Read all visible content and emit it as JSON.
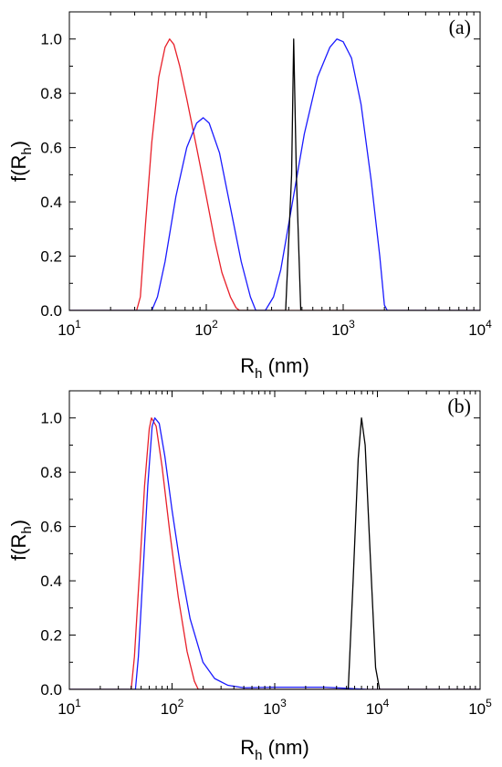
{
  "chart_data": [
    {
      "type": "line",
      "panel_label": "(a)",
      "xlabel": {
        "main": "R",
        "sub": "h",
        "unit": " (nm)"
      },
      "ylabel": {
        "main": "f(R",
        "sub": "h",
        "close": ")"
      },
      "xscale": "log",
      "xlim": [
        10,
        10000
      ],
      "ylim": [
        0,
        1.1
      ],
      "x_ticks": [
        {
          "value": 10,
          "base": "10",
          "exp": "1"
        },
        {
          "value": 100,
          "base": "10",
          "exp": "2"
        },
        {
          "value": 1000,
          "base": "10",
          "exp": "3"
        },
        {
          "value": 10000,
          "base": "10",
          "exp": "4"
        }
      ],
      "y_ticks": [
        "0.0",
        "0.2",
        "0.4",
        "0.6",
        "0.8",
        "1.0"
      ],
      "grid": false,
      "series": [
        {
          "color": "#e8202a",
          "points": [
            [
              10,
              0
            ],
            [
              31,
              0
            ],
            [
              33,
              0.05
            ],
            [
              36,
              0.32
            ],
            [
              40,
              0.62
            ],
            [
              45,
              0.86
            ],
            [
              50,
              0.97
            ],
            [
              54,
              1.0
            ],
            [
              58,
              0.98
            ],
            [
              64,
              0.9
            ],
            [
              72,
              0.78
            ],
            [
              85,
              0.6
            ],
            [
              100,
              0.42
            ],
            [
              115,
              0.26
            ],
            [
              130,
              0.14
            ],
            [
              150,
              0.05
            ],
            [
              165,
              0.01
            ],
            [
              175,
              0
            ],
            [
              10000,
              0
            ]
          ]
        },
        {
          "color": "#1a1aff",
          "points": [
            [
              10,
              0
            ],
            [
              40,
              0
            ],
            [
              44,
              0.05
            ],
            [
              50,
              0.18
            ],
            [
              60,
              0.42
            ],
            [
              72,
              0.6
            ],
            [
              85,
              0.69
            ],
            [
              95,
              0.71
            ],
            [
              105,
              0.69
            ],
            [
              125,
              0.58
            ],
            [
              150,
              0.38
            ],
            [
              180,
              0.18
            ],
            [
              210,
              0.05
            ],
            [
              230,
              0
            ],
            [
              270,
              0
            ],
            [
              310,
              0.05
            ],
            [
              350,
              0.15
            ],
            [
              420,
              0.38
            ],
            [
              520,
              0.65
            ],
            [
              650,
              0.86
            ],
            [
              800,
              0.97
            ],
            [
              900,
              1.0
            ],
            [
              1000,
              0.99
            ],
            [
              1150,
              0.93
            ],
            [
              1350,
              0.76
            ],
            [
              1600,
              0.48
            ],
            [
              1850,
              0.2
            ],
            [
              2000,
              0.02
            ],
            [
              2100,
              0
            ],
            [
              10000,
              0
            ]
          ]
        },
        {
          "color": "#000000",
          "points": [
            [
              10,
              0
            ],
            [
              380,
              0
            ],
            [
              420,
              0.5
            ],
            [
              435,
              1.0
            ],
            [
              455,
              0.5
            ],
            [
              490,
              0
            ],
            [
              10000,
              0
            ]
          ]
        }
      ]
    },
    {
      "type": "line",
      "panel_label": "(b)",
      "xlabel": {
        "main": "R",
        "sub": "h",
        "unit": " (nm)"
      },
      "ylabel": {
        "main": "f(R",
        "sub": "h",
        "close": ")"
      },
      "xscale": "log",
      "xlim": [
        10,
        100000
      ],
      "ylim": [
        0,
        1.1
      ],
      "x_ticks": [
        {
          "value": 10,
          "base": "10",
          "exp": "1"
        },
        {
          "value": 100,
          "base": "10",
          "exp": "2"
        },
        {
          "value": 1000,
          "base": "10",
          "exp": "3"
        },
        {
          "value": 10000,
          "base": "10",
          "exp": "4"
        },
        {
          "value": 100000,
          "base": "10",
          "exp": "5"
        }
      ],
      "y_ticks": [
        "0.0",
        "0.2",
        "0.4",
        "0.6",
        "0.8",
        "1.0"
      ],
      "grid": false,
      "series": [
        {
          "color": "#e8202a",
          "points": [
            [
              10,
              0
            ],
            [
              40,
              0
            ],
            [
              43,
              0.12
            ],
            [
              48,
              0.42
            ],
            [
              54,
              0.75
            ],
            [
              60,
              0.96
            ],
            [
              63,
              1.0
            ],
            [
              70,
              0.97
            ],
            [
              80,
              0.82
            ],
            [
              95,
              0.58
            ],
            [
              115,
              0.34
            ],
            [
              140,
              0.14
            ],
            [
              165,
              0.03
            ],
            [
              180,
              0
            ],
            [
              100000,
              0
            ]
          ]
        },
        {
          "color": "#1a1aff",
          "points": [
            [
              10,
              0
            ],
            [
              44,
              0
            ],
            [
              47,
              0.12
            ],
            [
              52,
              0.42
            ],
            [
              58,
              0.75
            ],
            [
              64,
              0.97
            ],
            [
              68,
              1.0
            ],
            [
              75,
              0.98
            ],
            [
              85,
              0.86
            ],
            [
              100,
              0.66
            ],
            [
              120,
              0.46
            ],
            [
              150,
              0.26
            ],
            [
              200,
              0.1
            ],
            [
              260,
              0.04
            ],
            [
              350,
              0.015
            ],
            [
              500,
              0.006
            ],
            [
              1000,
              0.008
            ],
            [
              3000,
              0.008
            ],
            [
              5000,
              0.004
            ],
            [
              8000,
              0
            ],
            [
              100000,
              0
            ]
          ]
        },
        {
          "color": "#000000",
          "points": [
            [
              10,
              0
            ],
            [
              5200,
              0
            ],
            [
              5800,
              0.4
            ],
            [
              6500,
              0.85
            ],
            [
              7000,
              1.0
            ],
            [
              7600,
              0.9
            ],
            [
              8500,
              0.5
            ],
            [
              9600,
              0.08
            ],
            [
              10500,
              0
            ],
            [
              100000,
              0
            ]
          ]
        }
      ]
    }
  ]
}
